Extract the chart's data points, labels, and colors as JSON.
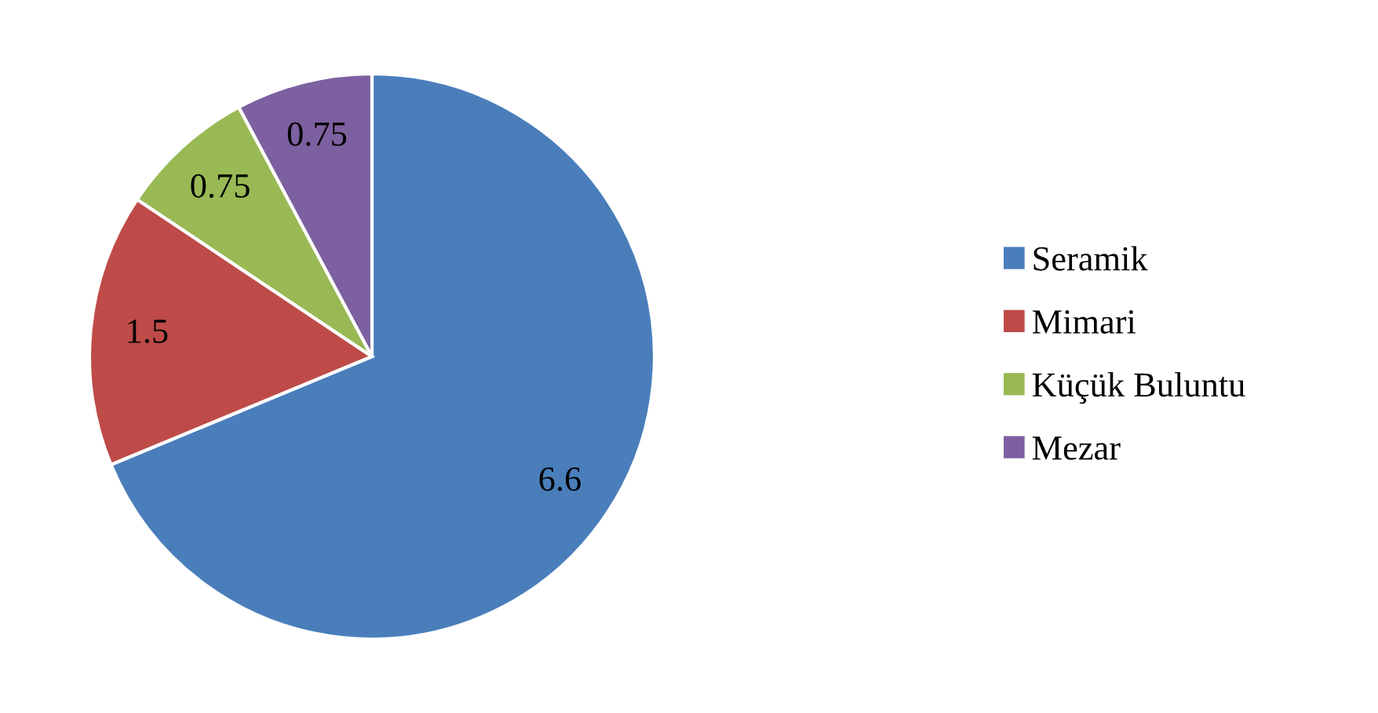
{
  "chart_data": {
    "type": "pie",
    "categories": [
      "Seramik",
      "Mimari",
      "Küçük Buluntu",
      "Mezar"
    ],
    "values": [
      6.6,
      1.5,
      0.75,
      0.75
    ],
    "colors": [
      "#4a7ebb",
      "#be4b48",
      "#98b954",
      "#7d60a0"
    ],
    "data_labels": true,
    "legend": "right"
  }
}
